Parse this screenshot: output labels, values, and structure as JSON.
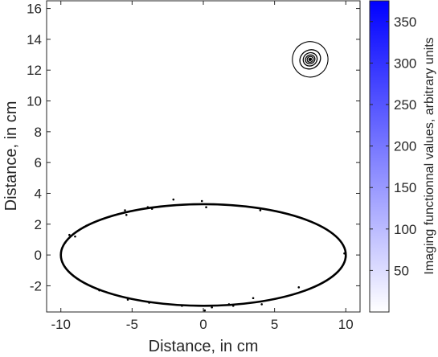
{
  "chart_data": {
    "type": "contour",
    "xlabel": "Distance, in cm",
    "ylabel": "Distance, in cm",
    "xlim": [
      -11,
      11
    ],
    "ylim": [
      -3.7,
      16.5
    ],
    "xticks": [
      -10,
      -5,
      0,
      5,
      10
    ],
    "yticks": [
      -2,
      0,
      2,
      4,
      6,
      8,
      10,
      12,
      14,
      16
    ],
    "grid": false,
    "ellipse": {
      "center": [
        0,
        0
      ],
      "semi_x": 10,
      "semi_y": 3.3
    },
    "inclusion": {
      "center": [
        7.5,
        12.7
      ],
      "semi_x": 1.0,
      "semi_y": 1.0
    },
    "contour_levels_cm": [
      {
        "rx": 1.25,
        "ry": 1.15,
        "rot": -30
      },
      {
        "rx": 0.75,
        "ry": 0.6,
        "rot": -30
      },
      {
        "rx": 0.5,
        "ry": 0.42,
        "rot": -30
      },
      {
        "rx": 0.34,
        "ry": 0.28,
        "rot": -30
      },
      {
        "rx": 0.22,
        "ry": 0.18,
        "rot": -30
      }
    ],
    "boundary_points": [
      [
        -9.7,
        0.8
      ],
      [
        -9.4,
        1.3
      ],
      [
        -9.0,
        1.2
      ],
      [
        -8.4,
        1.8
      ],
      [
        -8.2,
        1.9
      ],
      [
        -7.3,
        -2.3
      ],
      [
        -5.5,
        2.9
      ],
      [
        -5.4,
        2.6
      ],
      [
        -5.3,
        -2.9
      ],
      [
        -3.9,
        3.1
      ],
      [
        -3.6,
        3.0
      ],
      [
        -3.8,
        -3.1
      ],
      [
        -2.1,
        3.6
      ],
      [
        -1.5,
        -3.3
      ],
      [
        -0.1,
        3.5
      ],
      [
        0.2,
        3.1
      ],
      [
        0.1,
        -3.6
      ],
      [
        0.6,
        -3.4
      ],
      [
        1.8,
        -3.2
      ],
      [
        2.1,
        -3.3
      ],
      [
        3.5,
        -2.8
      ],
      [
        4.0,
        2.9
      ],
      [
        4.1,
        -3.2
      ],
      [
        6.7,
        -2.1
      ],
      [
        9.9,
        0.1
      ],
      [
        10.0,
        -0.1
      ]
    ],
    "colorbar": {
      "label": "Imaging functionnal values, arbitrary units",
      "min": 0,
      "max": 375,
      "ticks": [
        50,
        100,
        150,
        200,
        250,
        300,
        350
      ],
      "colormap": [
        "#ffffff",
        "#0000ff"
      ]
    }
  }
}
